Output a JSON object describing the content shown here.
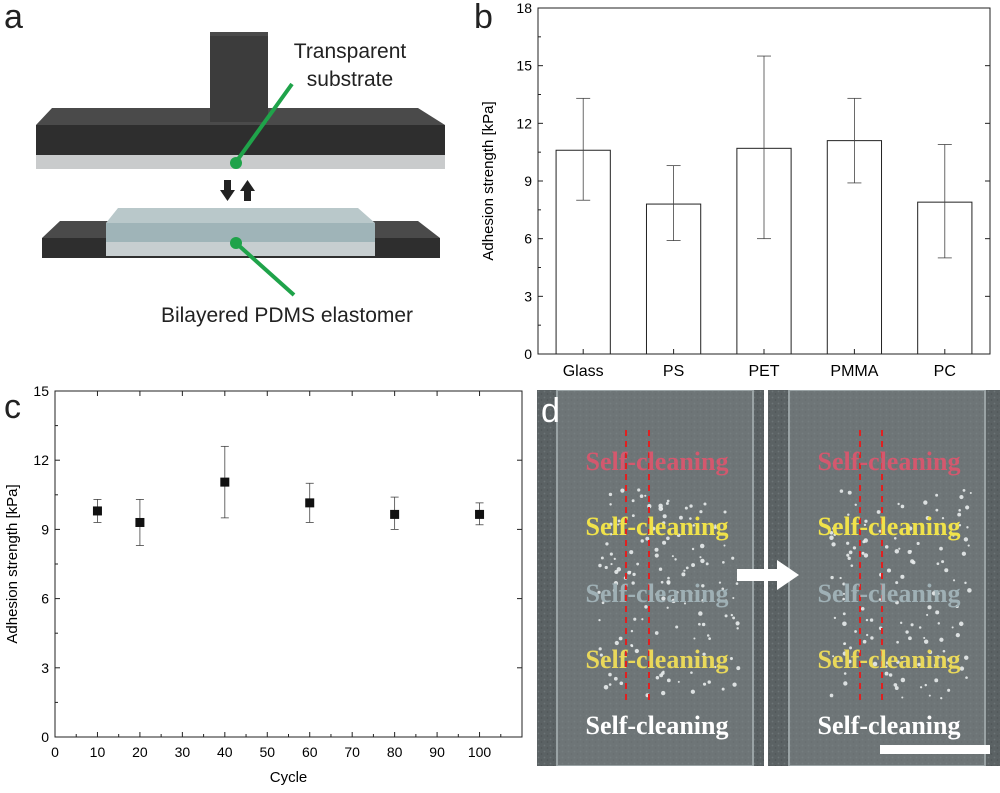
{
  "panels": {
    "a": {
      "letter": "a",
      "label_substrate": [
        "Transparent",
        "substrate"
      ],
      "label_elastomer": "Bilayered PDMS elastomer"
    },
    "b": {
      "letter": "b"
    },
    "c": {
      "letter": "c"
    },
    "d": {
      "letter": "d",
      "text_rows": [
        {
          "text": "Self-cleaning",
          "color": "#d3586e"
        },
        {
          "text": "Self-cleaning",
          "color": "#f0e24a"
        },
        {
          "text": "Self-cleaning",
          "color": "#9fb0b5"
        },
        {
          "text": "Self-cleaning",
          "color": "#e9d85a"
        },
        {
          "text": "Self-cleaning",
          "color": "#ffffff"
        }
      ]
    }
  },
  "chart_data": [
    {
      "id": "b",
      "type": "bar",
      "categories": [
        "Glass",
        "PS",
        "PET",
        "PMMA",
        "PC"
      ],
      "values": [
        10.6,
        7.8,
        10.7,
        11.1,
        7.9
      ],
      "errors_low": [
        8.0,
        5.9,
        6.0,
        8.9,
        5.0
      ],
      "errors_high": [
        13.3,
        9.8,
        15.5,
        13.3,
        10.9
      ],
      "xlabel": "",
      "ylabel": "Adhesion strength [kPa]",
      "ylim": [
        0,
        18
      ],
      "yticks": [
        0,
        3,
        6,
        9,
        12,
        15,
        18
      ],
      "grid": false
    },
    {
      "id": "c",
      "type": "scatter",
      "x": [
        10,
        20,
        40,
        60,
        80,
        100
      ],
      "y": [
        9.8,
        9.3,
        11.05,
        10.15,
        9.65,
        9.65
      ],
      "errors_low": [
        9.3,
        8.3,
        9.5,
        9.3,
        9.0,
        9.2
      ],
      "errors_high": [
        10.3,
        10.3,
        12.6,
        11.0,
        10.4,
        10.15
      ],
      "xlabel": "Cycle",
      "ylabel": "Adhesion strength [kPa]",
      "xlim": [
        0,
        110
      ],
      "ylim": [
        0,
        15
      ],
      "xticks": [
        0,
        10,
        20,
        30,
        40,
        50,
        60,
        70,
        80,
        90,
        100
      ],
      "yticks": [
        0,
        3,
        6,
        9,
        12,
        15
      ],
      "grid": false
    }
  ]
}
